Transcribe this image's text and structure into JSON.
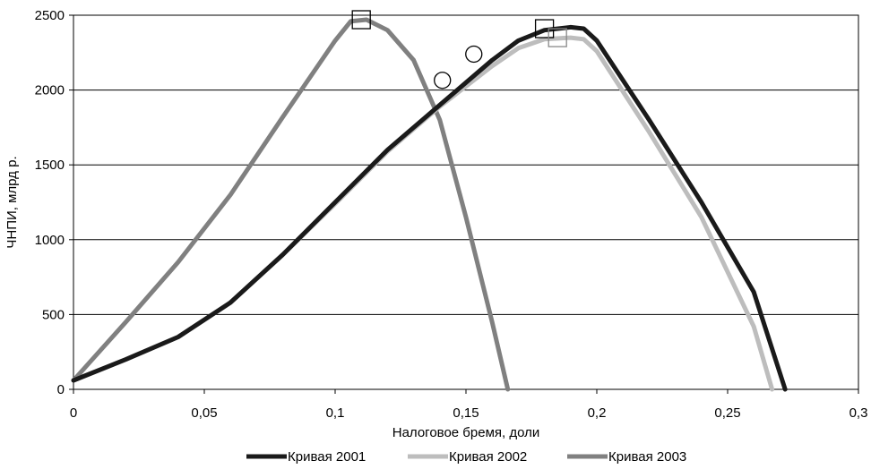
{
  "chart_data": {
    "type": "line",
    "title": "",
    "xlabel": "Налоговое бремя, доли",
    "ylabel": "ЧНПИ, млрд р.",
    "xlim": [
      0,
      0.3
    ],
    "ylim": [
      0,
      2500
    ],
    "x_ticks": [
      0,
      0.05,
      0.1,
      0.15,
      0.2,
      0.25,
      0.3
    ],
    "x_tick_labels": [
      "0",
      "0,05",
      "0,1",
      "0,15",
      "0,2",
      "0,25",
      "0,3"
    ],
    "y_ticks": [
      0,
      500,
      1000,
      1500,
      2000,
      2500
    ],
    "y_tick_labels": [
      "0",
      "500",
      "1000",
      "1500",
      "2000",
      "2500"
    ],
    "grid": "horizontal",
    "legend_position": "bottom",
    "series": [
      {
        "name": "Кривая 2001",
        "color": "#1a1a1a",
        "x": [
          0,
          0.02,
          0.04,
          0.06,
          0.08,
          0.1,
          0.12,
          0.14,
          0.16,
          0.17,
          0.18,
          0.19,
          0.195,
          0.2,
          0.22,
          0.24,
          0.26,
          0.272
        ],
        "y": [
          60,
          200,
          350,
          580,
          900,
          1250,
          1600,
          1900,
          2200,
          2330,
          2400,
          2420,
          2410,
          2330,
          1800,
          1250,
          650,
          0
        ],
        "markers": [
          {
            "shape": "circle",
            "x": 0.141,
            "y": 2065
          },
          {
            "shape": "square",
            "x": 0.18,
            "y": 2410
          }
        ]
      },
      {
        "name": "Кривая 2002",
        "color": "#bdbdbd",
        "x": [
          0,
          0.02,
          0.04,
          0.06,
          0.08,
          0.1,
          0.12,
          0.14,
          0.16,
          0.17,
          0.18,
          0.19,
          0.195,
          0.2,
          0.22,
          0.24,
          0.26,
          0.267
        ],
        "y": [
          60,
          200,
          350,
          580,
          900,
          1240,
          1590,
          1890,
          2160,
          2280,
          2340,
          2350,
          2340,
          2260,
          1720,
          1150,
          420,
          0
        ],
        "markers": [
          {
            "shape": "circle",
            "x": 0.153,
            "y": 2240
          },
          {
            "shape": "square",
            "x": 0.185,
            "y": 2350
          }
        ]
      },
      {
        "name": "Кривая 2003",
        "color": "#808080",
        "x": [
          0,
          0.02,
          0.04,
          0.06,
          0.08,
          0.1,
          0.106,
          0.112,
          0.12,
          0.13,
          0.14,
          0.15,
          0.16,
          0.166
        ],
        "y": [
          60,
          450,
          850,
          1300,
          1820,
          2330,
          2460,
          2470,
          2400,
          2200,
          1800,
          1150,
          450,
          0
        ],
        "markers": [
          {
            "shape": "square",
            "x": 0.11,
            "y": 2470
          }
        ]
      }
    ]
  }
}
